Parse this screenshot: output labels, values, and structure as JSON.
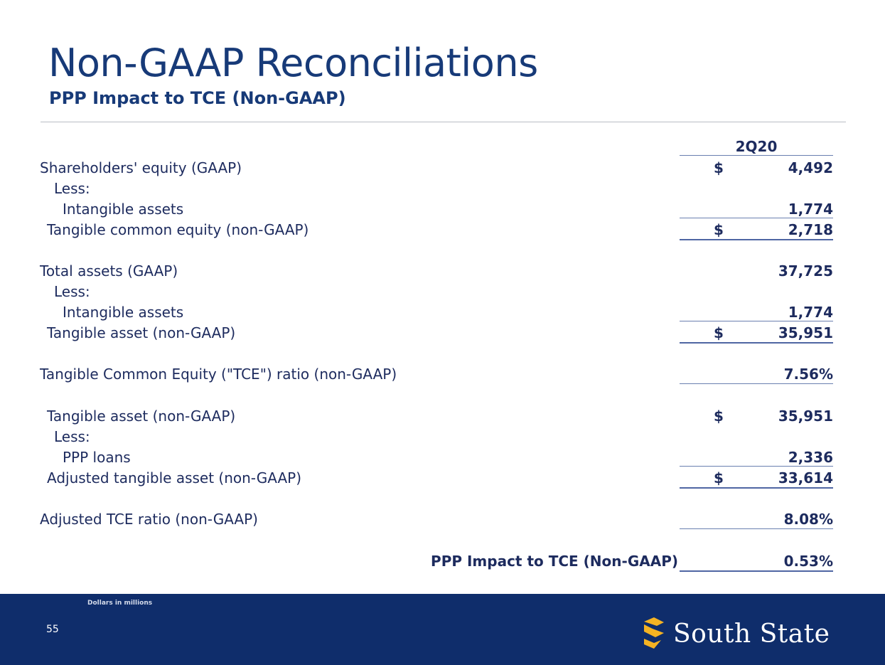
{
  "header": {
    "title": "Non-GAAP Reconciliations",
    "subtitle": "PPP Impact to TCE (Non-GAAP)"
  },
  "table": {
    "column_header": "2Q20",
    "rows": [
      {
        "label": "Shareholders' equity (GAAP)",
        "currency": "$",
        "value": "4,492"
      },
      {
        "label": "Less:",
        "currency": "",
        "value": ""
      },
      {
        "label": "Intangible assets",
        "currency": "",
        "value": "1,774"
      },
      {
        "label": "Tangible common equity (non-GAAP)",
        "currency": "$",
        "value": "2,718"
      },
      {
        "label": "Total assets (GAAP)",
        "currency": "",
        "value": "37,725"
      },
      {
        "label": "Less:",
        "currency": "",
        "value": ""
      },
      {
        "label": "Intangible assets",
        "currency": "",
        "value": "1,774"
      },
      {
        "label": "Tangible asset (non-GAAP)",
        "currency": "$",
        "value": "35,951"
      },
      {
        "label": "Tangible Common Equity (\"TCE\") ratio (non-GAAP)",
        "currency": "",
        "value": "7.56%"
      },
      {
        "label": "Tangible asset (non-GAAP)",
        "currency": "$",
        "value": "35,951"
      },
      {
        "label": "Less:",
        "currency": "",
        "value": ""
      },
      {
        "label": "PPP loans",
        "currency": "",
        "value": "2,336"
      },
      {
        "label": "Adjusted tangible asset (non-GAAP)",
        "currency": "$",
        "value": "33,614"
      },
      {
        "label": "Adjusted TCE ratio (non-GAAP)",
        "currency": "",
        "value": "8.08%"
      }
    ],
    "impact": {
      "label": "PPP Impact to TCE (Non-GAAP)",
      "value": "0.53%"
    }
  },
  "footer": {
    "note": "Dollars in millions",
    "page_number": "55",
    "brand_name": "South State",
    "brand_icon": "s-logo-icon",
    "brand_icon_color": "#f5b323",
    "background_color": "#0f2d6b"
  }
}
